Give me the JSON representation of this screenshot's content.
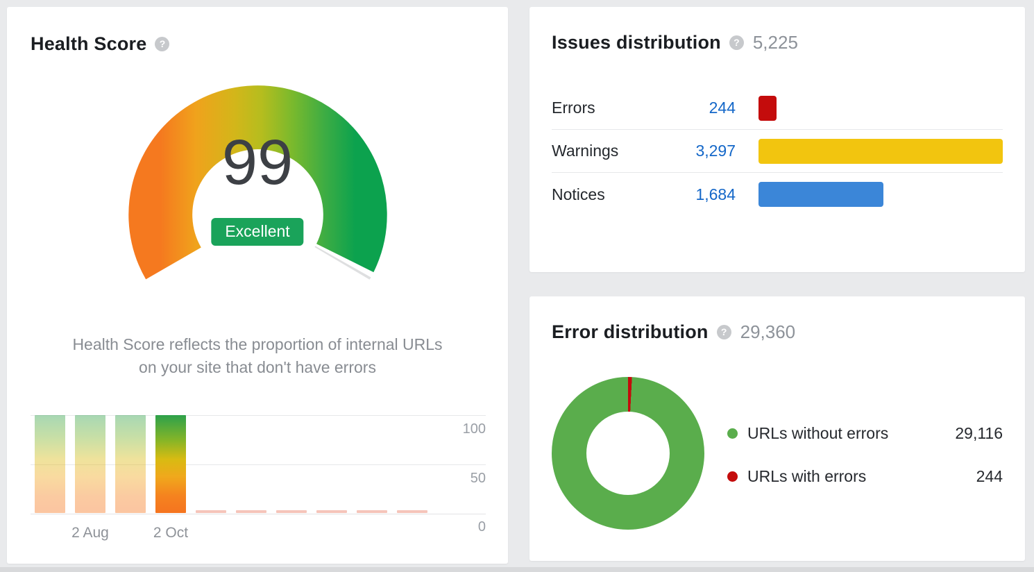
{
  "health_score": {
    "title": "Health Score",
    "score": "99",
    "rating": "Excellent",
    "description_line1": "Health Score reflects the proportion of internal URLs",
    "description_line2": "on your site that don't have errors",
    "yticks": [
      "100",
      "50",
      "0"
    ],
    "xlabels": [
      "2 Aug",
      "2 Oct"
    ]
  },
  "issues_distribution": {
    "title": "Issues distribution",
    "total": "5,225",
    "rows": [
      {
        "label": "Errors",
        "value": "244"
      },
      {
        "label": "Warnings",
        "value": "3,297"
      },
      {
        "label": "Notices",
        "value": "1,684"
      }
    ]
  },
  "error_distribution": {
    "title": "Error distribution",
    "total": "29,360",
    "legend": [
      {
        "label": "URLs without errors",
        "value": "29,116"
      },
      {
        "label": "URLs with errors",
        "value": "244"
      }
    ]
  },
  "icons": {
    "help_glyph": "?"
  },
  "colors": {
    "badge_green": "#1aa35a",
    "link_blue": "#1467c8",
    "card_bg": "#ffffff",
    "page_bg": "#e9eaec"
  },
  "chart_data": [
    {
      "id": "health_gauge",
      "type": "gauge",
      "title": "Health Score",
      "value": 99,
      "min": 0,
      "max": 100,
      "label": "Excellent",
      "arc_sweep_deg": 240,
      "gradient": [
        "#f5791f",
        "#f0a21c",
        "#d3b61a",
        "#b5bd1e",
        "#79b92d",
        "#3bac44",
        "#0ca24e"
      ]
    },
    {
      "id": "health_trend",
      "type": "bar",
      "values": [
        99,
        99,
        99,
        99,
        2,
        2,
        2,
        2,
        2,
        2
      ],
      "highlight_index": 3,
      "x_labels": [
        "2 Aug",
        "2 Oct"
      ],
      "x_label_positions": [
        1,
        3
      ],
      "ylim": [
        0,
        100
      ],
      "yticks": [
        100,
        50,
        0
      ],
      "grid": true
    },
    {
      "id": "issues",
      "type": "bar",
      "orientation": "horizontal",
      "categories": [
        "Errors",
        "Warnings",
        "Notices"
      ],
      "values": [
        244,
        3297,
        1684
      ],
      "total": 5225,
      "colors": [
        "#c40c0c",
        "#f2c50f",
        "#3b86d8"
      ]
    },
    {
      "id": "error_donut",
      "type": "pie",
      "labels": [
        "URLs without errors",
        "URLs with errors"
      ],
      "values": [
        29116,
        244
      ],
      "total": 29360,
      "colors": [
        "#5aad4c",
        "#c40c0c"
      ],
      "legend_position": "right"
    }
  ]
}
